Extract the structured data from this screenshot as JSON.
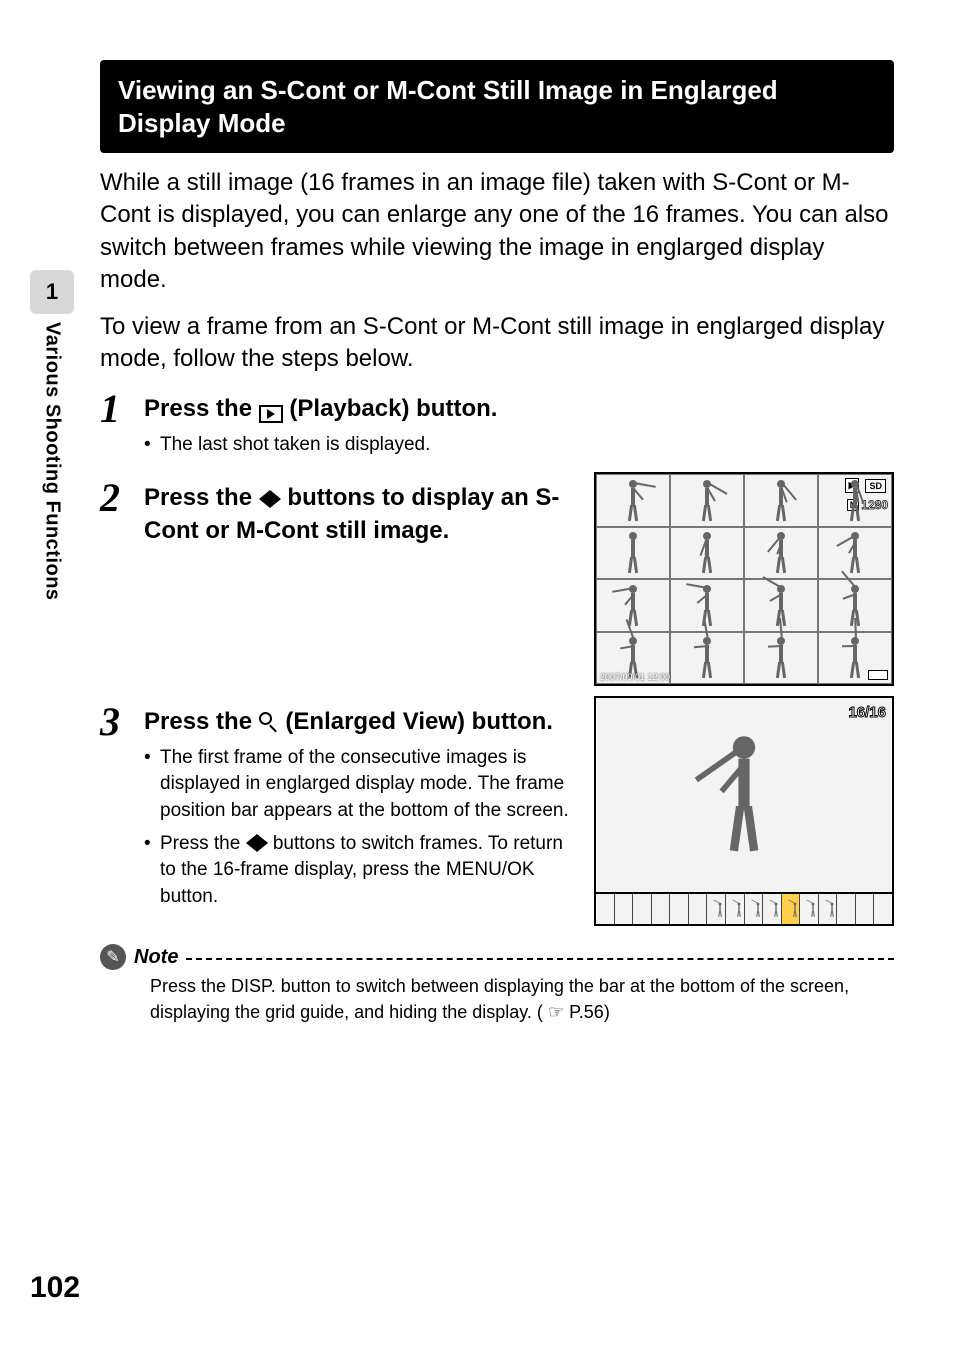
{
  "side": {
    "chapter_num": "1",
    "chapter_title": "Various Shooting Functions"
  },
  "header": "Viewing an S-Cont or M-Cont Still Image in Englarged Display Mode",
  "intro1": "While a still image (16 frames in an image file) taken with S-Cont or M-Cont is displayed, you can enlarge any one of the 16 frames. You can also switch between frames while viewing the image in englarged display mode.",
  "intro2": "To view a frame from an S-Cont or M-Cont still image in englarged display mode, follow the steps below.",
  "steps": {
    "s1": {
      "num": "1",
      "title_a": "Press the ",
      "title_b": " (Playback) button.",
      "bullet1": "The last shot taken is displayed."
    },
    "s2": {
      "num": "2",
      "title_a": "Press the ",
      "title_b": " buttons to display an S-Cont or M-Cont still image."
    },
    "s3": {
      "num": "3",
      "title_a": "Press the ",
      "title_b": " (Enlarged View) button.",
      "bullet1": "The first frame of the consecutive images is displayed in englarged display mode. The frame position bar appears at the bottom of the screen.",
      "bullet2_a": "Press the ",
      "bullet2_b": " buttons to switch frames. To return to the 16-frame display, press the MENU/OK button."
    }
  },
  "fig1": {
    "timestamp": "2007/09/01 12:00",
    "resolution_badge": "1280",
    "resolution_prefix": "N",
    "sd_label": "SD",
    "swing_rotations": [
      -80,
      -60,
      -40,
      -20,
      0,
      20,
      40,
      60,
      80,
      100,
      120,
      140,
      160,
      170,
      175,
      178
    ]
  },
  "fig2": {
    "counter": "16/16",
    "filmstrip_count": 16,
    "film_image_start": 6,
    "film_image_end": 12,
    "film_selected": 10
  },
  "note": {
    "label": "Note",
    "text_a": "Press the DISP. button to switch between displaying the bar at the bottom of the screen, displaying the grid guide, and hiding the display. (",
    "text_b": "P.56)"
  },
  "page_number": "102",
  "colors": {
    "header_bg": "#000000",
    "header_fg": "#ffffff",
    "side_tab_bg": "#d8d8d8",
    "film_sel_bg": "#ffcf4a"
  }
}
